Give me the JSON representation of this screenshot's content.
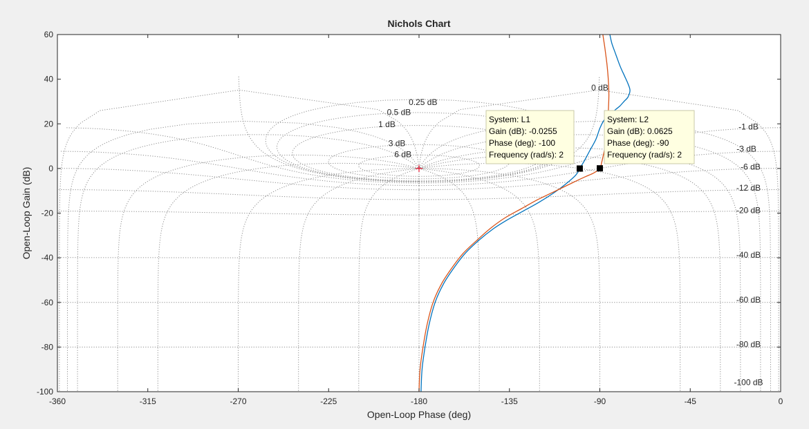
{
  "chart_data": {
    "type": "line",
    "title": "Nichols Chart",
    "xlabel": "Open-Loop Phase (deg)",
    "ylabel": "Open-Loop Gain (dB)",
    "xlim": [
      -360,
      0
    ],
    "ylim": [
      -100,
      60
    ],
    "xticks": [
      -360,
      -315,
      -270,
      -225,
      -180,
      -135,
      -90,
      -45,
      0
    ],
    "yticks": [
      -100,
      -80,
      -60,
      -40,
      -20,
      0,
      20,
      40,
      60
    ],
    "grid": true,
    "grid_type": "nichols",
    "critical_point": {
      "phase": -180,
      "gain": 0
    },
    "closed_loop_gain_labels_dB": [
      "6 dB",
      "3 dB",
      "1 dB",
      "0.5 dB",
      "0.25 dB",
      "0 dB",
      "-1 dB",
      "-3 dB",
      "-6 dB",
      "-12 dB",
      "-20 dB",
      "-40 dB",
      "-60 dB",
      "-80 dB",
      "-100 dB"
    ],
    "closed_loop_gain_values_dB": [
      6,
      3,
      1,
      0.5,
      0.25,
      0,
      -1,
      -3,
      -6,
      -12,
      -20,
      -40,
      -60,
      -80,
      -100
    ],
    "series": [
      {
        "system": "L1",
        "color": "#0072bd",
        "phase": [
          -179,
          -178.5,
          -177,
          -175,
          -172,
          -168,
          -163,
          -157,
          -150,
          -143,
          -136,
          -128,
          -120,
          -113,
          -107,
          -102,
          -100,
          -98,
          -95,
          -92,
          -90,
          -88,
          -86,
          -84,
          -82,
          -80,
          -78,
          -76,
          -75,
          -76,
          -78,
          -80,
          -82,
          -84,
          -85
        ],
        "gain": [
          -100,
          -90,
          -80,
          -70,
          -60,
          -52,
          -45,
          -38,
          -32,
          -27,
          -23,
          -19,
          -15,
          -11,
          -7,
          -3,
          0,
          3,
          8,
          13,
          18,
          21.5,
          23.5,
          25,
          26.5,
          28,
          30,
          32,
          35,
          38,
          42,
          46,
          51,
          56,
          60
        ]
      },
      {
        "system": "L2",
        "color": "#d95319",
        "phase": [
          -180,
          -179.5,
          -178,
          -176,
          -173,
          -169,
          -164,
          -158,
          -151,
          -144,
          -137,
          -129,
          -121,
          -113,
          -105,
          -98,
          -93,
          -90,
          -89,
          -88,
          -87,
          -86.5,
          -86,
          -85.7,
          -85.5,
          -85.8,
          -86.5,
          -87.5,
          -88.5
        ],
        "gain": [
          -100,
          -90,
          -80,
          -70,
          -60,
          -52,
          -45,
          -38,
          -32,
          -26.5,
          -22,
          -18,
          -14,
          -10.5,
          -7,
          -4,
          -2,
          0,
          3,
          7,
          12,
          17,
          22,
          27,
          33,
          40,
          47,
          54,
          60
        ]
      }
    ],
    "datatips": [
      {
        "system_line": "System: L1",
        "gain_line": "Gain (dB): -0.0255",
        "phase_line": "Phase (deg): -100",
        "freq_line": "Frequency (rad/s): 2",
        "phase": -100,
        "gain": -0.0255
      },
      {
        "system_line": "System: L2",
        "gain_line": "Gain (dB): 0.0625",
        "phase_line": "Phase (deg): -90",
        "freq_line": "Frequency (rad/s): 2",
        "phase": -90,
        "gain": 0.0625
      }
    ],
    "colors": {
      "grid": "#8c8c8c",
      "critical_marker": "#e8102c",
      "datatip_bg": "#ffffe1",
      "datatip_border": "#c8c8a8",
      "axes_bg": "#ffffff",
      "figure_bg": "#f0f0f0"
    }
  }
}
